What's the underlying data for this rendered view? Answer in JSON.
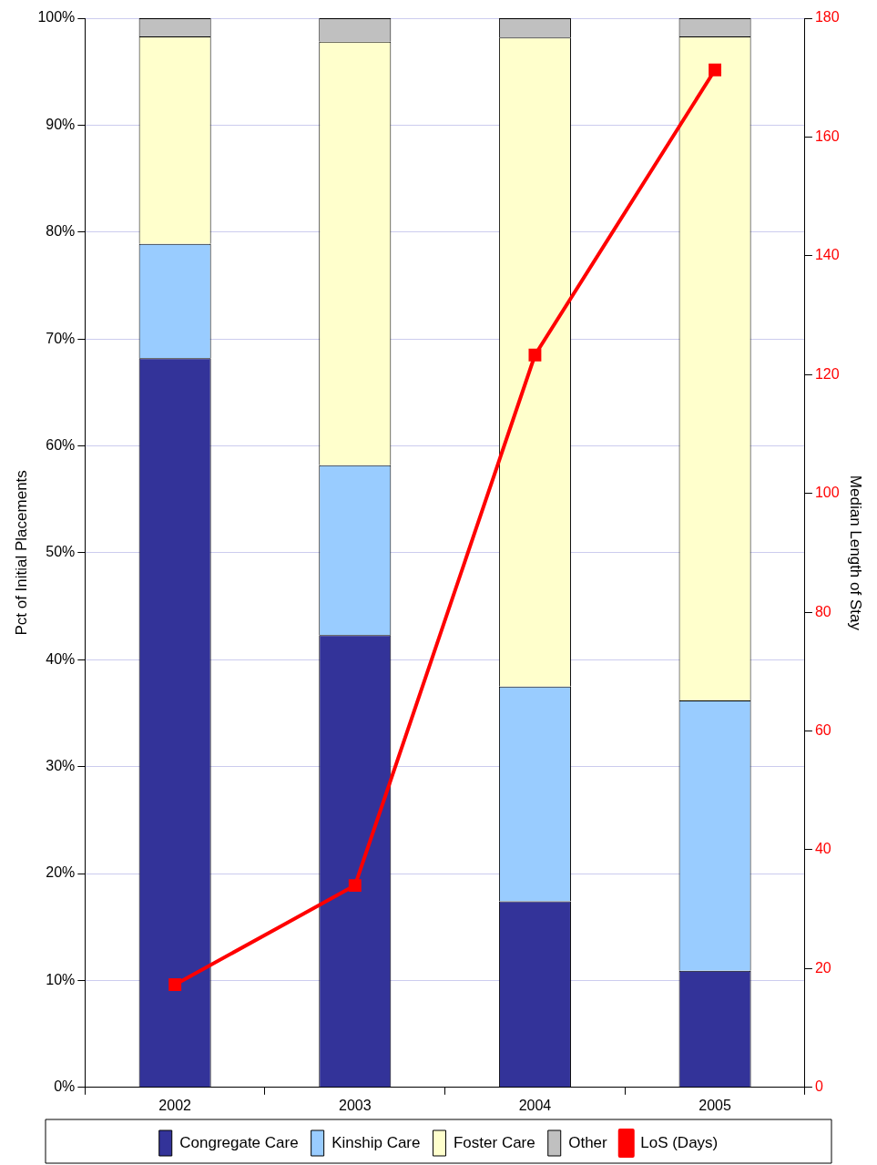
{
  "chart_data": {
    "type": "bar",
    "stacked": true,
    "categories": [
      "2002",
      "2003",
      "2004",
      "2005"
    ],
    "ylabel": "Pct of Initial Placements",
    "y2label": "Median Length of Stay",
    "ylim": [
      0,
      100
    ],
    "yticks": [
      {
        "value": 0,
        "label": "0%"
      },
      {
        "value": 10,
        "label": "10%"
      },
      {
        "value": 20,
        "label": "20%"
      },
      {
        "value": 30,
        "label": "30%"
      },
      {
        "value": 40,
        "label": "40%"
      },
      {
        "value": 50,
        "label": "50%"
      },
      {
        "value": 60,
        "label": "60%"
      },
      {
        "value": 70,
        "label": "70%"
      },
      {
        "value": 80,
        "label": "80%"
      },
      {
        "value": 90,
        "label": "90%"
      },
      {
        "value": 100,
        "label": "100%"
      }
    ],
    "y2lim": [
      0,
      180
    ],
    "y2ticks": [
      0,
      20,
      40,
      60,
      80,
      100,
      120,
      140,
      160,
      180
    ],
    "grid": "y",
    "legend": "bottom",
    "marker": "square",
    "series": [
      {
        "name": "Congregate Care",
        "color": "#333399",
        "values": [
          68.2,
          42.3,
          17.4,
          10.9
        ]
      },
      {
        "name": "Kinship Care",
        "color": "#99ccff",
        "values": [
          10.7,
          15.9,
          20.1,
          25.3
        ]
      },
      {
        "name": "Foster Care",
        "color": "#ffffcc",
        "values": [
          19.4,
          39.6,
          60.7,
          62.1
        ]
      },
      {
        "name": "Other",
        "color": "#c0c0c0",
        "values": [
          1.7,
          2.2,
          1.8,
          1.7
        ]
      },
      {
        "name": "LoS (Days)",
        "type": "line",
        "axis": "y2",
        "color": "#ff0000",
        "values": [
          17.3,
          34.0,
          123.3,
          171.3
        ]
      }
    ]
  }
}
